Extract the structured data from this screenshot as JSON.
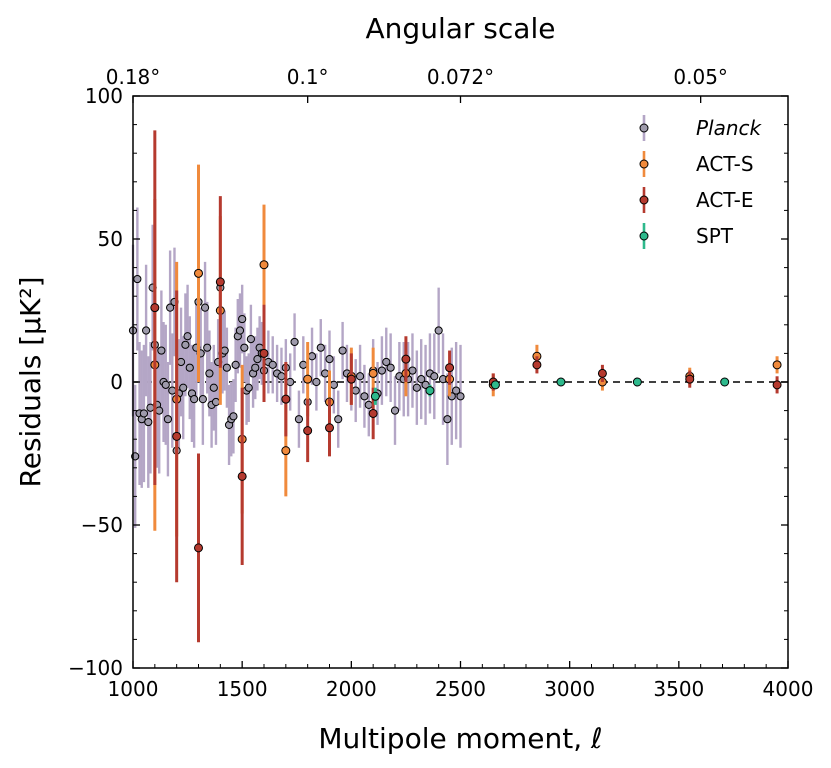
{
  "chart_data": {
    "type": "scatter",
    "title": "",
    "xlabel": "Multipole moment, ℓ",
    "ylabel": "Residuals [μK²]",
    "top_xlabel": "Angular scale",
    "xlim": [
      1000,
      4000
    ],
    "ylim": [
      -100,
      100
    ],
    "x_ticks": [
      1000,
      1500,
      2000,
      2500,
      3000,
      3500,
      4000
    ],
    "x_tick_labels": [
      "1000",
      "1500",
      "2000",
      "2500",
      "3000",
      "3500",
      "4000"
    ],
    "y_ticks": [
      -100,
      -50,
      0,
      50,
      100
    ],
    "y_tick_labels": [
      "−100",
      "−50",
      "0",
      "50",
      "100"
    ],
    "top_ticks": [
      1000,
      1800,
      2500,
      3600
    ],
    "top_tick_labels": [
      "0.18°",
      "0.1°",
      "0.072°",
      "0.05°"
    ],
    "reference_line": {
      "y": 0,
      "style": "dashed"
    },
    "grid": false,
    "legend_position": "top-right",
    "series": [
      {
        "name": "Planck",
        "italic": true,
        "marker_color": "#9e9aab",
        "error_color": "#b4a6c6",
        "x": [
          1000,
          1010,
          1020,
          1030,
          1040,
          1050,
          1060,
          1070,
          1080,
          1090,
          1100,
          1110,
          1120,
          1130,
          1140,
          1150,
          1160,
          1170,
          1180,
          1190,
          1200,
          1210,
          1220,
          1230,
          1240,
          1250,
          1260,
          1270,
          1280,
          1290,
          1300,
          1310,
          1320,
          1330,
          1340,
          1350,
          1360,
          1370,
          1380,
          1390,
          1400,
          1410,
          1420,
          1430,
          1440,
          1450,
          1460,
          1470,
          1480,
          1490,
          1500,
          1510,
          1520,
          1530,
          1540,
          1550,
          1560,
          1570,
          1580,
          1590,
          1600,
          1620,
          1640,
          1660,
          1680,
          1700,
          1720,
          1740,
          1760,
          1780,
          1800,
          1820,
          1840,
          1860,
          1880,
          1900,
          1920,
          1940,
          1960,
          1980,
          2000,
          2020,
          2040,
          2060,
          2080,
          2100,
          2120,
          2140,
          2160,
          2180,
          2200,
          2220,
          2240,
          2260,
          2280,
          2300,
          2320,
          2340,
          2360,
          2380,
          2400,
          2420,
          2440,
          2460,
          2480,
          2500
        ],
        "y": [
          18,
          -26,
          36,
          -11,
          -13,
          -11,
          18,
          -14,
          -9,
          33,
          13,
          -8,
          -10,
          11,
          0,
          -1,
          -13,
          26,
          -3,
          28,
          -24,
          -4,
          7,
          -2,
          13,
          16,
          5,
          -4,
          -6,
          12,
          28,
          10,
          -6,
          26,
          12,
          3,
          -8,
          -2,
          -7,
          7,
          33,
          10,
          11,
          5,
          -15,
          -13,
          -12,
          6,
          16,
          18,
          22,
          12,
          -3,
          -2,
          15,
          3,
          5,
          8,
          12,
          10,
          4,
          7,
          6,
          3,
          2,
          5,
          0,
          14,
          -13,
          6,
          -7,
          9,
          0,
          12,
          3,
          8,
          -1,
          -13,
          11,
          3,
          1,
          -3,
          2,
          -5,
          -8,
          4,
          -4,
          4,
          7,
          5,
          -10,
          2,
          1,
          1,
          4,
          -2,
          1,
          -1,
          3,
          2,
          18,
          1,
          -13,
          -5,
          -3,
          -5
        ],
        "err": [
          30,
          25,
          25,
          25,
          24,
          24,
          23,
          23,
          23,
          22,
          22,
          22,
          22,
          21,
          21,
          21,
          20,
          20,
          20,
          19,
          19,
          19,
          19,
          18,
          18,
          18,
          18,
          17,
          17,
          17,
          17,
          16,
          16,
          16,
          16,
          15,
          15,
          15,
          15,
          15,
          14,
          14,
          14,
          14,
          14,
          13,
          13,
          13,
          13,
          13,
          12,
          12,
          12,
          12,
          12,
          12,
          11,
          11,
          11,
          11,
          11,
          11,
          10,
          10,
          10,
          10,
          10,
          10,
          10,
          10,
          10,
          10,
          10,
          10,
          10,
          10,
          10,
          10,
          10,
          10,
          11,
          11,
          11,
          11,
          11,
          11,
          11,
          12,
          12,
          12,
          12,
          12,
          13,
          13,
          13,
          13,
          14,
          14,
          14,
          15,
          15,
          16,
          16,
          17,
          17,
          18
        ]
      },
      {
        "name": "ACT-S",
        "italic": false,
        "marker_color": "#f08a3c",
        "error_color": "#f08a3c",
        "x": [
          1100,
          1200,
          1300,
          1400,
          1500,
          1600,
          1700,
          1800,
          1900,
          2000,
          2100,
          2250,
          2450,
          2650,
          2850,
          3150,
          3550,
          3950
        ],
        "y": [
          6,
          -6,
          38,
          25,
          -20,
          41,
          -24,
          1,
          -7,
          2,
          3,
          3,
          1,
          -1,
          9,
          0,
          2,
          6
        ],
        "err": [
          58,
          48,
          38,
          33,
          26,
          21,
          16,
          13,
          11,
          10,
          9,
          8,
          6,
          4,
          4,
          3,
          3,
          3
        ]
      },
      {
        "name": "ACT-E",
        "italic": false,
        "marker_color": "#b53a2f",
        "error_color": "#b53a2f",
        "x": [
          1100,
          1200,
          1300,
          1400,
          1500,
          1600,
          1700,
          1800,
          1900,
          2000,
          2100,
          2250,
          2450,
          2650,
          2850,
          3150,
          3550,
          3950
        ],
        "y": [
          26,
          -19,
          -58,
          35,
          -33,
          10,
          -6,
          -17,
          -16,
          1,
          -11,
          8,
          5,
          0,
          6,
          3,
          1,
          -1
        ],
        "err": [
          62,
          51,
          33,
          30,
          31,
          17,
          13,
          11,
          10,
          9,
          9,
          8,
          6,
          3,
          3,
          3,
          3,
          3
        ]
      },
      {
        "name": "SPT",
        "italic": false,
        "marker_color": "#2eb98c",
        "error_color": "#2eb98c",
        "x": [
          2110,
          2360,
          2660,
          2960,
          3310,
          3710
        ],
        "y": [
          -5,
          -3,
          -1,
          0,
          0,
          0
        ],
        "err": [
          3,
          2,
          1,
          0.5,
          0.5,
          0.5
        ]
      }
    ]
  }
}
